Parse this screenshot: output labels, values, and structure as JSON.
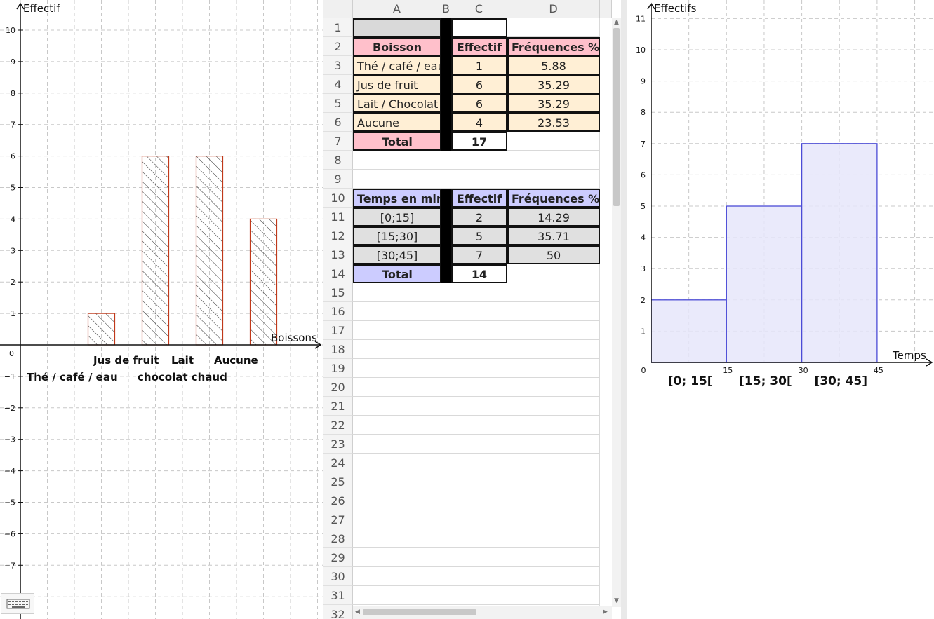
{
  "left_chart": {
    "y_label": "Effectif",
    "x_label": "Boissons",
    "ylim": [
      -8,
      11
    ],
    "y_ticks": [
      "10",
      "9",
      "8",
      "7",
      "6",
      "5",
      "4",
      "3",
      "2",
      "1",
      "0",
      "−1",
      "−2",
      "−3",
      "−4",
      "−5",
      "−6",
      "−7"
    ],
    "bar_labels": [
      {
        "text": "Thé / café / eau"
      },
      {
        "text": "Jus de fruit"
      },
      {
        "text": "Lait"
      },
      {
        "text": "chocolat chaud"
      },
      {
        "text": "Aucune"
      }
    ],
    "colors": {
      "bar_stroke": "#c0391a",
      "hatch": "#333333"
    }
  },
  "chart_data": [
    {
      "type": "bar",
      "categories": [
        "Thé / café / eau",
        "Jus de fruit",
        "Lait / chocolat chaud",
        "Aucune"
      ],
      "values": [
        1,
        6,
        6,
        4
      ],
      "xlabel": "Boissons",
      "ylabel": "Effectif",
      "ylim": [
        -8,
        11
      ],
      "grid": true
    },
    {
      "type": "bar",
      "categories": [
        "[0; 15[",
        "[15; 30[",
        "[30; 45]"
      ],
      "bins": [
        [
          0,
          15
        ],
        [
          15,
          30
        ],
        [
          30,
          45
        ]
      ],
      "values": [
        2,
        5,
        7
      ],
      "xlabel": "Temps",
      "ylabel": "Effectifs",
      "ylim": [
        0,
        11
      ],
      "grid": true
    }
  ],
  "right_chart": {
    "y_label": "Effectifs",
    "x_label": "Temps",
    "y_ticks": [
      "1",
      "2",
      "3",
      "4",
      "5",
      "6",
      "7",
      "8",
      "9",
      "10",
      "11"
    ],
    "x_ticks": [
      "0",
      "15",
      "30",
      "45"
    ],
    "bin_labels": [
      "[0; 15[",
      "[15; 30[",
      "[30; 45]"
    ],
    "colors": {
      "bar_fill": "#e6e6fa",
      "bar_stroke": "#4b4bd6"
    }
  },
  "spreadsheet": {
    "columns": [
      "A",
      "B",
      "C",
      "D"
    ],
    "rows": [
      "1",
      "2",
      "3",
      "4",
      "5",
      "6",
      "7",
      "8",
      "9",
      "10",
      "11",
      "12",
      "13",
      "14",
      "15",
      "16",
      "17",
      "18",
      "19",
      "20",
      "21",
      "22",
      "23",
      "24",
      "25",
      "26",
      "27",
      "28",
      "29",
      "30",
      "31",
      "32"
    ],
    "table1": {
      "header": [
        "Boisson",
        "Effectif",
        "Fréquences %"
      ],
      "rows": [
        [
          "Thé / café / eau",
          "1",
          "5.88"
        ],
        [
          "Jus de fruit",
          "6",
          "35.29"
        ],
        [
          "Lait / Chocolat chaud",
          "6",
          "35.29"
        ],
        [
          "Aucune",
          "4",
          "23.53"
        ]
      ],
      "total_label": "Total",
      "total_value": "17",
      "colors": {
        "header": "#ffc0cb",
        "body": "#ffefd5"
      }
    },
    "table2": {
      "header": [
        "Temps en min",
        "Effectif",
        "Fréquences %"
      ],
      "rows": [
        [
          "[0;15]",
          "2",
          "14.29"
        ],
        [
          "[15;30]",
          "5",
          "35.71"
        ],
        [
          "[30;45]",
          "7",
          "50"
        ]
      ],
      "total_label": "Total",
      "total_value": "14",
      "colors": {
        "header": "#ccccff",
        "body": "#e0e0e0"
      }
    }
  }
}
